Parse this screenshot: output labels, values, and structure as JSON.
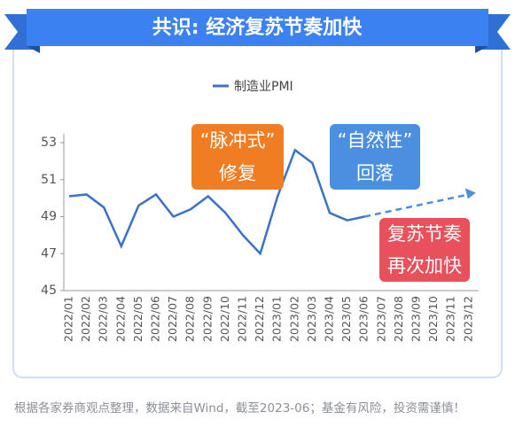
{
  "chart_data": {
    "type": "line",
    "title": "共识: 经济复苏节奏加快",
    "categories": [
      "2022/01",
      "2022/02",
      "2022/03",
      "2022/04",
      "2022/05",
      "2022/06",
      "2022/07",
      "2022/08",
      "2022/09",
      "2022/10",
      "2022/11",
      "2022/12",
      "2023/01",
      "2023/02",
      "2023/03",
      "2023/04",
      "2023/05",
      "2023/06",
      "2023/07",
      "2023/08",
      "2023/09",
      "2023/10",
      "2023/11",
      "2023/12"
    ],
    "series": [
      {
        "name": "制造业PMI",
        "color": "#3b72c9",
        "values": [
          50.1,
          50.2,
          49.5,
          47.4,
          49.6,
          50.2,
          49.0,
          49.4,
          50.1,
          49.2,
          48.0,
          47.0,
          50.1,
          52.6,
          51.9,
          49.2,
          48.8,
          49.0,
          null,
          null,
          null,
          null,
          null,
          null
        ]
      },
      {
        "color": "#4a8fe0",
        "dashed": true,
        "values": [
          null,
          null,
          null,
          null,
          null,
          null,
          null,
          null,
          null,
          null,
          null,
          null,
          null,
          null,
          null,
          null,
          null,
          49.0,
          49.2,
          49.4,
          49.6,
          49.8,
          50.0,
          50.2
        ]
      }
    ],
    "ylim": [
      45,
      53
    ],
    "yticks": [
      45,
      47,
      49,
      51,
      53
    ],
    "annotations": [
      {
        "lines": [
          "“脉冲式”",
          "修复"
        ],
        "color": "#f07d22"
      },
      {
        "lines": [
          "“自然性”",
          "回落"
        ],
        "color": "#4a8fe0"
      },
      {
        "lines": [
          "复苏节奏",
          "再次加快"
        ],
        "color": "#e8505b"
      }
    ]
  },
  "footnote": "根据各家券商观点整理，数据来自Wind，截至2023-06；基金有风险，投资需谨慎！"
}
